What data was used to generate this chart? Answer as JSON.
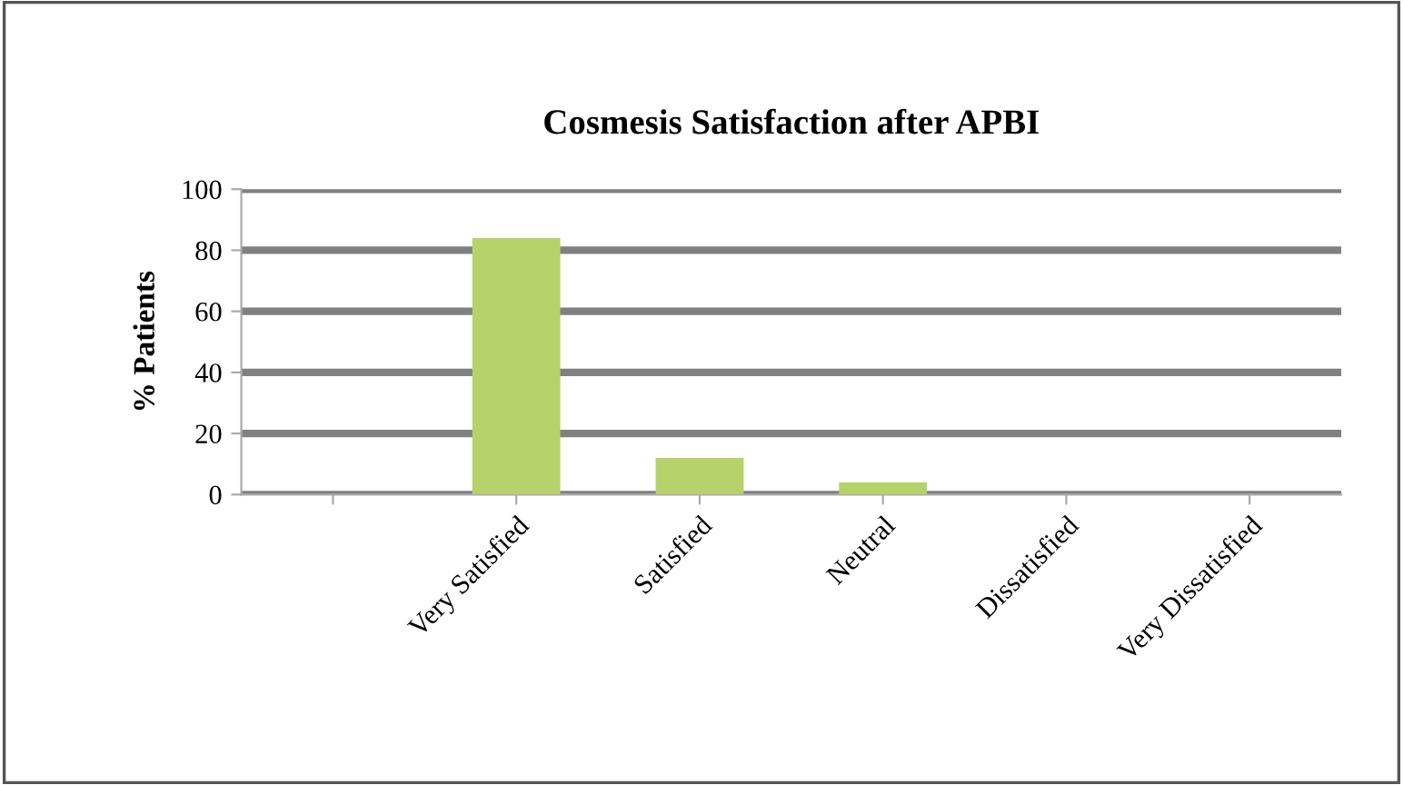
{
  "chart_data": {
    "type": "bar",
    "title": "Cosmesis Satisfaction after APBI",
    "ylabel": "% Patients",
    "categories": [
      null,
      "Very Satisfied",
      "Satisfied",
      "Neutral",
      "Dissatisfied",
      "Very Dissatisfied"
    ],
    "values": [
      null,
      84,
      12,
      4,
      0,
      0
    ],
    "color": "#b5d36a",
    "ylim": [
      0,
      100
    ],
    "yticks": [
      0,
      20,
      40,
      60,
      80,
      100
    ],
    "grid": "y",
    "legend": false
  }
}
